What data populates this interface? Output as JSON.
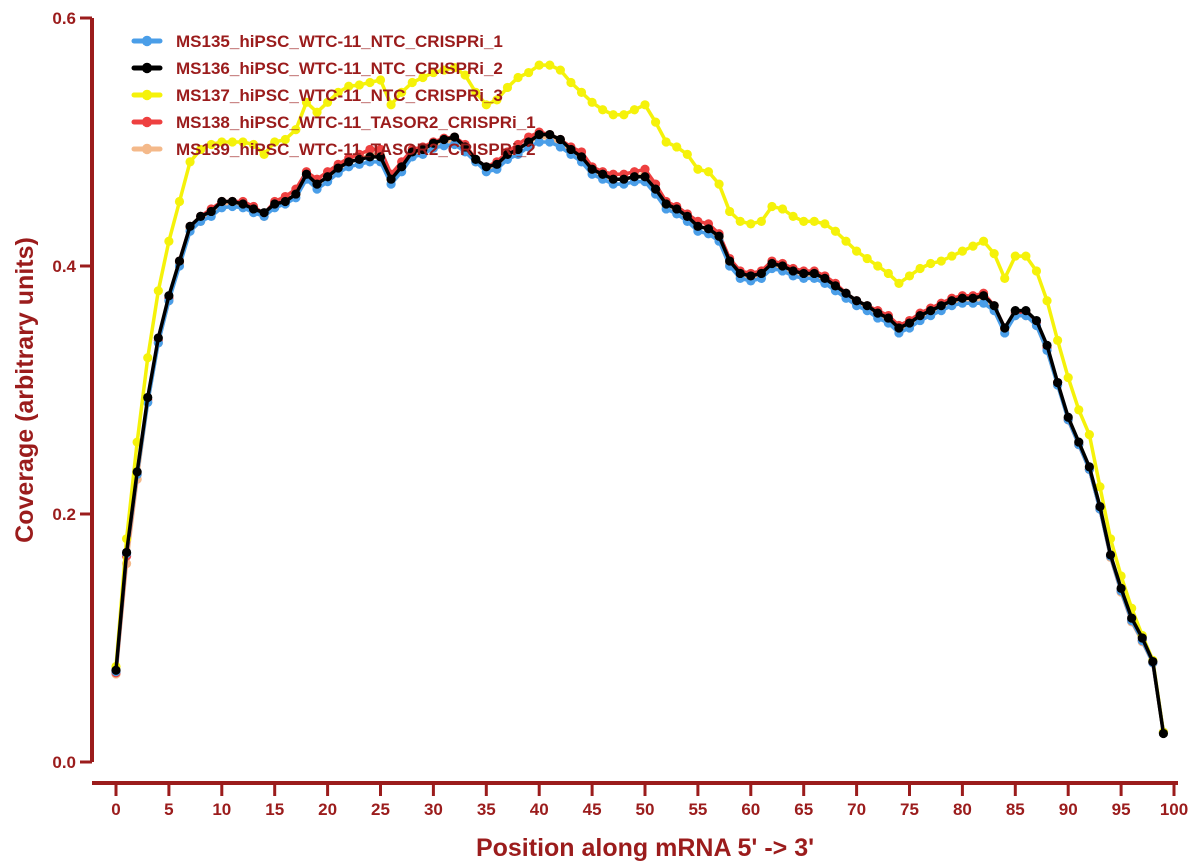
{
  "chart_data": {
    "type": "line",
    "xlabel": "Position along mRNA 5' -> 3'",
    "ylabel": "Coverage (arbitrary units)",
    "xlim": [
      0,
      100
    ],
    "ylim": [
      0,
      0.6
    ],
    "x_ticks": [
      0,
      5,
      10,
      15,
      20,
      25,
      30,
      35,
      40,
      45,
      50,
      55,
      60,
      65,
      70,
      75,
      80,
      85,
      90,
      95,
      100
    ],
    "x_tick_labels": [
      "0",
      "5",
      "10",
      "15",
      "20",
      "25",
      "30",
      "35",
      "40",
      "45",
      "50",
      "55",
      "60",
      "65",
      "70",
      "75",
      "80",
      "85",
      "90",
      "95",
      "100"
    ],
    "y_ticks": [
      0,
      0.2,
      0.4,
      0.6
    ],
    "y_tick_labels": [
      "0.0",
      "0.2",
      "0.4",
      "0.6"
    ],
    "grid": false,
    "legend_position": "top-left",
    "series": [
      {
        "name": "MS135_hiPSC_WTC-11_NTC_CRISPRi_1",
        "color": "#4a9ee8",
        "values": [
          0.073,
          0.168,
          0.232,
          0.29,
          0.338,
          0.372,
          0.4,
          0.428,
          0.436,
          0.44,
          0.447,
          0.448,
          0.447,
          0.443,
          0.44,
          0.447,
          0.45,
          0.455,
          0.47,
          0.462,
          0.468,
          0.475,
          0.48,
          0.482,
          0.484,
          0.484,
          0.466,
          0.476,
          0.488,
          0.49,
          0.495,
          0.497,
          0.498,
          0.492,
          0.484,
          0.476,
          0.478,
          0.486,
          0.49,
          0.496,
          0.5,
          0.5,
          0.496,
          0.49,
          0.484,
          0.474,
          0.47,
          0.466,
          0.466,
          0.468,
          0.468,
          0.458,
          0.446,
          0.442,
          0.436,
          0.428,
          0.426,
          0.42,
          0.4,
          0.39,
          0.388,
          0.39,
          0.398,
          0.396,
          0.392,
          0.39,
          0.39,
          0.386,
          0.38,
          0.374,
          0.368,
          0.364,
          0.358,
          0.354,
          0.346,
          0.35,
          0.356,
          0.36,
          0.364,
          0.368,
          0.37,
          0.37,
          0.37,
          0.364,
          0.346,
          0.36,
          0.36,
          0.352,
          0.332,
          0.304,
          0.276,
          0.256,
          0.236,
          0.204,
          0.166,
          0.138,
          0.114,
          0.098,
          0.08,
          0.024
        ]
      },
      {
        "name": "MS136_hiPSC_WTC-11_NTC_CRISPRi_2",
        "color": "#000000",
        "values": [
          0.074,
          0.169,
          0.234,
          0.294,
          0.342,
          0.376,
          0.404,
          0.432,
          0.44,
          0.444,
          0.452,
          0.452,
          0.45,
          0.446,
          0.443,
          0.45,
          0.452,
          0.458,
          0.474,
          0.466,
          0.472,
          0.479,
          0.484,
          0.486,
          0.488,
          0.488,
          0.47,
          0.48,
          0.492,
          0.494,
          0.499,
          0.502,
          0.504,
          0.496,
          0.486,
          0.48,
          0.482,
          0.49,
          0.494,
          0.5,
          0.506,
          0.506,
          0.502,
          0.494,
          0.488,
          0.478,
          0.474,
          0.47,
          0.47,
          0.472,
          0.472,
          0.462,
          0.45,
          0.446,
          0.44,
          0.432,
          0.43,
          0.424,
          0.404,
          0.394,
          0.392,
          0.394,
          0.402,
          0.4,
          0.396,
          0.394,
          0.394,
          0.39,
          0.384,
          0.378,
          0.372,
          0.368,
          0.362,
          0.358,
          0.35,
          0.354,
          0.36,
          0.364,
          0.368,
          0.372,
          0.374,
          0.374,
          0.376,
          0.368,
          0.35,
          0.364,
          0.364,
          0.356,
          0.336,
          0.306,
          0.278,
          0.258,
          0.238,
          0.206,
          0.167,
          0.14,
          0.116,
          0.1,
          0.081,
          0.023
        ]
      },
      {
        "name": "MS137_hiPSC_WTC-11_NTC_CRISPRi_3",
        "color": "#f5f20a",
        "values": [
          0.077,
          0.18,
          0.258,
          0.326,
          0.38,
          0.42,
          0.452,
          0.484,
          0.494,
          0.498,
          0.5,
          0.5,
          0.5,
          0.498,
          0.49,
          0.5,
          0.502,
          0.51,
          0.532,
          0.524,
          0.532,
          0.54,
          0.545,
          0.546,
          0.548,
          0.55,
          0.53,
          0.54,
          0.548,
          0.552,
          0.556,
          0.558,
          0.56,
          0.554,
          0.54,
          0.53,
          0.534,
          0.544,
          0.552,
          0.556,
          0.562,
          0.562,
          0.558,
          0.548,
          0.54,
          0.532,
          0.526,
          0.522,
          0.522,
          0.526,
          0.53,
          0.516,
          0.5,
          0.496,
          0.49,
          0.478,
          0.476,
          0.466,
          0.444,
          0.436,
          0.434,
          0.436,
          0.448,
          0.446,
          0.44,
          0.436,
          0.436,
          0.434,
          0.428,
          0.42,
          0.412,
          0.406,
          0.4,
          0.394,
          0.386,
          0.392,
          0.398,
          0.402,
          0.404,
          0.408,
          0.412,
          0.416,
          0.42,
          0.41,
          0.39,
          0.408,
          0.408,
          0.396,
          0.372,
          0.34,
          0.31,
          0.284,
          0.264,
          0.222,
          0.18,
          0.15,
          0.124,
          0.102,
          0.082,
          0.024
        ]
      },
      {
        "name": "MS138_hiPSC_WTC-11_TASOR2_CRISPRi_1",
        "color": "#ee4040",
        "values": [
          0.072,
          0.166,
          0.232,
          0.292,
          0.34,
          0.374,
          0.404,
          0.432,
          0.44,
          0.446,
          0.452,
          0.452,
          0.452,
          0.448,
          0.442,
          0.452,
          0.456,
          0.462,
          0.476,
          0.47,
          0.476,
          0.482,
          0.487,
          0.49,
          0.494,
          0.494,
          0.474,
          0.484,
          0.494,
          0.496,
          0.5,
          0.503,
          0.504,
          0.498,
          0.486,
          0.48,
          0.484,
          0.492,
          0.498,
          0.504,
          0.508,
          0.506,
          0.502,
          0.496,
          0.492,
          0.48,
          0.476,
          0.474,
          0.474,
          0.476,
          0.478,
          0.466,
          0.452,
          0.448,
          0.442,
          0.436,
          0.434,
          0.426,
          0.406,
          0.396,
          0.394,
          0.396,
          0.404,
          0.402,
          0.398,
          0.396,
          0.396,
          0.392,
          0.386,
          0.378,
          0.372,
          0.368,
          0.364,
          0.36,
          0.352,
          0.356,
          0.362,
          0.366,
          0.37,
          0.374,
          0.376,
          0.376,
          0.378,
          0.368,
          0.35,
          0.362,
          0.362,
          0.354,
          0.334,
          0.306,
          0.276,
          0.256,
          0.236,
          0.204,
          0.166,
          0.138,
          0.114,
          0.098,
          0.08,
          0.024
        ]
      },
      {
        "name": "MS139_hiPSC_WTC-11_TASOR2_CRISPRi_2",
        "color": "#f4b98a",
        "values": [
          0.071,
          0.16,
          0.228,
          0.29,
          0.338,
          0.372,
          0.402,
          0.43,
          0.436,
          0.442,
          0.448,
          0.45,
          0.448,
          0.444,
          0.44,
          0.448,
          0.452,
          0.458,
          0.472,
          0.466,
          0.472,
          0.478,
          0.484,
          0.486,
          0.49,
          0.49,
          0.47,
          0.48,
          0.49,
          0.492,
          0.497,
          0.5,
          0.501,
          0.495,
          0.484,
          0.478,
          0.48,
          0.488,
          0.494,
          0.5,
          0.504,
          0.503,
          0.499,
          0.492,
          0.488,
          0.476,
          0.472,
          0.47,
          0.47,
          0.472,
          0.474,
          0.462,
          0.448,
          0.444,
          0.438,
          0.432,
          0.43,
          0.422,
          0.402,
          0.392,
          0.39,
          0.392,
          0.4,
          0.398,
          0.394,
          0.392,
          0.392,
          0.388,
          0.382,
          0.376,
          0.37,
          0.366,
          0.36,
          0.356,
          0.348,
          0.352,
          0.358,
          0.362,
          0.366,
          0.37,
          0.372,
          0.372,
          0.374,
          0.366,
          0.348,
          0.36,
          0.36,
          0.352,
          0.332,
          0.304,
          0.276,
          0.256,
          0.236,
          0.204,
          0.165,
          0.137,
          0.113,
          0.097,
          0.08,
          0.024
        ]
      }
    ],
    "draw_order": [
      4,
      3,
      0,
      2,
      1
    ]
  }
}
